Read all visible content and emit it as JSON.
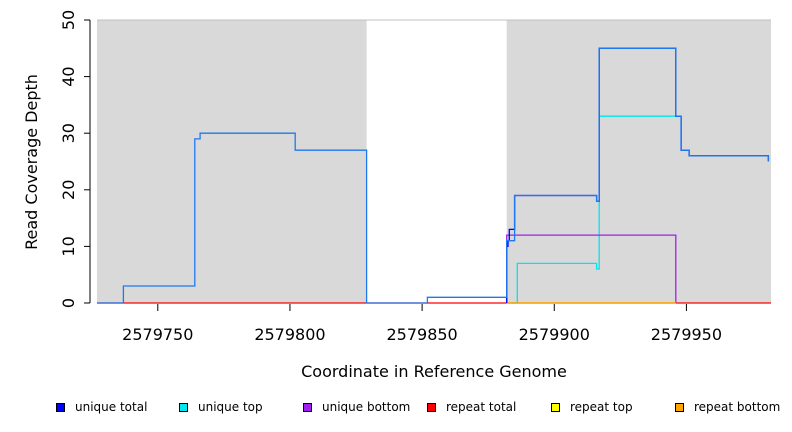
{
  "chart_data": {
    "type": "line",
    "xlabel": "Coordinate in Reference Genome",
    "ylabel": "Read Coverage Depth",
    "xlim": [
      2579727,
      2579982
    ],
    "ylim": [
      0,
      50
    ],
    "x_ticks": [
      2579750,
      2579800,
      2579850,
      2579900,
      2579950
    ],
    "y_ticks": [
      0,
      10,
      20,
      30,
      40,
      50
    ],
    "x_tick_labels": [
      "2579750",
      "2579800",
      "2579850",
      "2579900",
      "2579950"
    ],
    "y_tick_labels": [
      "0",
      "10",
      "20",
      "30",
      "40",
      "50"
    ],
    "shaded_regions": [
      {
        "x0": 2579727,
        "x1": 2579829,
        "color": "#d9d9d9"
      },
      {
        "x0": 2579882,
        "x1": 2579982,
        "color": "#d9d9d9"
      }
    ],
    "series": [
      {
        "name": "unique top",
        "color": "#00e5ee",
        "x": [
          2579884,
          2579886,
          2579886,
          2579916,
          2579916,
          2579917,
          2579917,
          2579946
        ],
        "y": [
          0,
          0,
          7,
          7,
          6,
          6,
          33,
          33
        ]
      },
      {
        "name": "unique bottom",
        "color": "#a020f0",
        "x": [
          2579882,
          2579882,
          2579946,
          2579946
        ],
        "y": [
          0,
          12,
          12,
          0
        ]
      },
      {
        "name": "repeat total",
        "color": "#ff0000",
        "x": [
          2579727,
          2579982
        ],
        "y": [
          0,
          0
        ]
      },
      {
        "name": "repeat top",
        "color": "#ffff00",
        "x": [
          2579882,
          2579946
        ],
        "y": [
          0,
          0
        ]
      },
      {
        "name": "repeat bottom",
        "color": "#ffa500",
        "x": [
          2579882,
          2579946
        ],
        "y": [
          0,
          0
        ]
      },
      {
        "name": "unique total",
        "color": "#0000ff",
        "x": [
          2579882,
          2579882,
          2579882.5,
          2579882.5,
          2579883,
          2579883,
          2579885,
          2579885,
          2579916,
          2579916,
          2579917,
          2579917,
          2579946,
          2579946,
          2579948,
          2579948,
          2579951,
          2579951,
          2579952,
          2579952,
          2579981,
          2579981
        ],
        "y": [
          0,
          10,
          10,
          11,
          11,
          13,
          13,
          19,
          19,
          18,
          18,
          45,
          45,
          33,
          33,
          27,
          27,
          26,
          26,
          26,
          26,
          25
        ]
      },
      {
        "name": "combined coverage",
        "color": "#1e78f0",
        "hide_in_legend": true,
        "x": [
          2579727,
          2579737,
          2579737,
          2579764,
          2579764,
          2579765,
          2579765,
          2579766,
          2579766,
          2579802,
          2579802,
          2579829,
          2579829,
          2579852,
          2579852,
          2579882,
          2579882,
          2579885,
          2579885,
          2579916,
          2579916,
          2579917,
          2579917,
          2579946,
          2579946,
          2579948,
          2579948,
          2579951,
          2579951,
          2579952,
          2579952,
          2579981,
          2579981
        ],
        "y": [
          0,
          0,
          3,
          3,
          29,
          29,
          29,
          29,
          30,
          30,
          27,
          27,
          0,
          0,
          1,
          1,
          11,
          11,
          19,
          19,
          18,
          18,
          45,
          45,
          33,
          33,
          27,
          27,
          26,
          26,
          26,
          26,
          25
        ]
      }
    ],
    "legend": [
      {
        "label": "unique total",
        "color": "#0000ff"
      },
      {
        "label": "unique top",
        "color": "#00e5ee"
      },
      {
        "label": "unique bottom",
        "color": "#a020f0"
      },
      {
        "label": "repeat total",
        "color": "#ff0000"
      },
      {
        "label": "repeat top",
        "color": "#ffff00"
      },
      {
        "label": "repeat bottom",
        "color": "#ffa500"
      }
    ],
    "legend_placement": "bottom",
    "grid": false
  }
}
